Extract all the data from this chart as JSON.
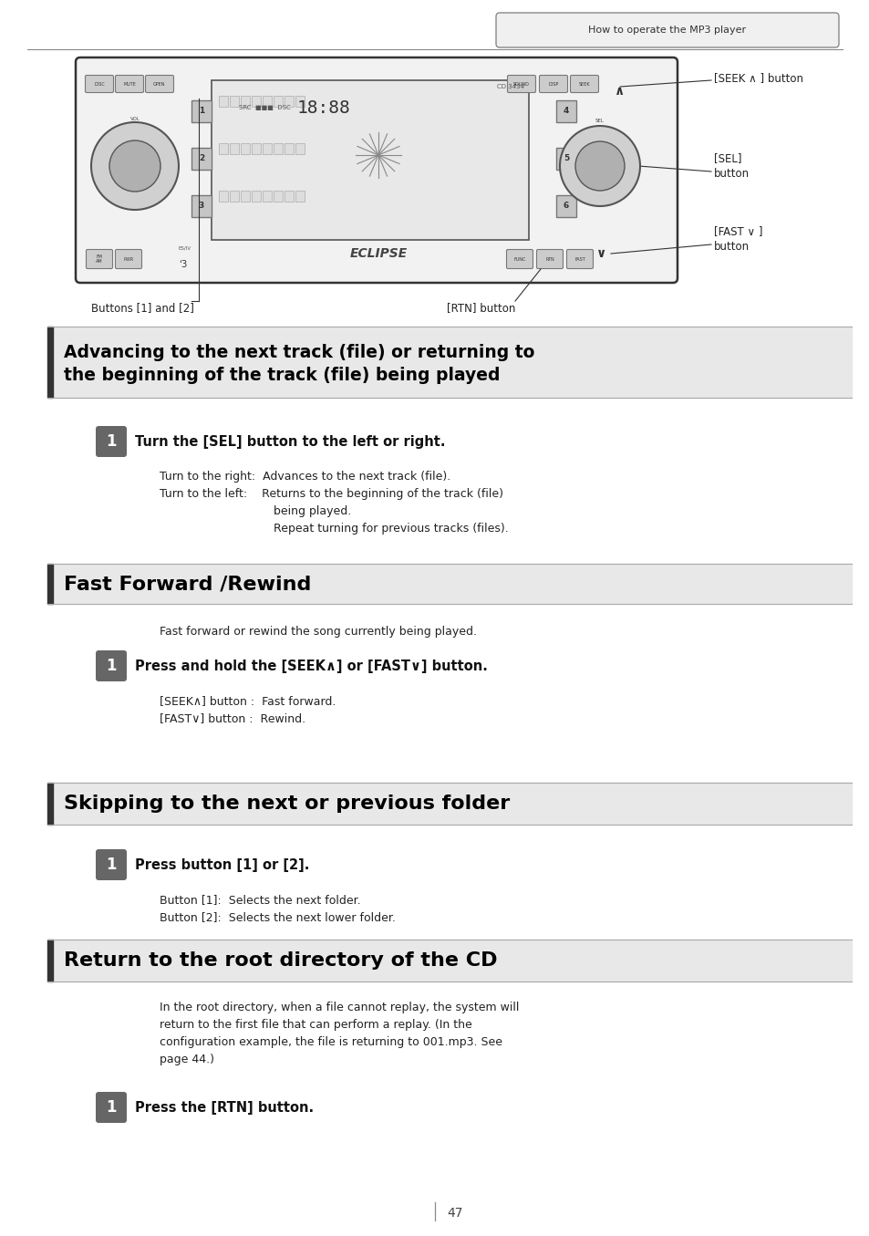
{
  "page_bg": "#ffffff",
  "header_tab_text": "How to operate the MP3 player",
  "header_tab_bg": "#f0f0f0",
  "header_tab_border": "#888888",
  "top_line_color": "#555555",
  "seek_label": "[SEEK ∧ ] button",
  "sel_label": "[SEL]\nbutton",
  "fast_label": "[FAST ∨ ]\nbutton",
  "buttons12_label": "Buttons [1] and [2]",
  "rtn_label": "[RTN] button",
  "section1_title": "Advancing to the next track (file) or returning to\nthe beginning of the track (file) being played",
  "section1_step1_bold": "Turn the [SEL] button to the left or right.",
  "section1_detail1": "Turn to the right:  Advances to the next track (file).",
  "section1_detail2a": "Turn to the left:    Returns to the beginning of the track (file)",
  "section1_detail2b": "being played.",
  "section1_detail2c": "Repeat turning for previous tracks (files).",
  "section2_title": "Fast Forward /Rewind",
  "section2_intro": "Fast forward or rewind the song currently being played.",
  "section2_step1_bold": "Press and hold the [SEEK∧] or [FAST∨] button.",
  "section2_detail1": "[SEEK∧] button :  Fast forward.",
  "section2_detail2": "[FAST∨] button :  Rewind.",
  "section3_title": "Skipping to the next or previous folder",
  "section3_step1_bold": "Press button [1] or [2].",
  "section3_detail1": "Button [1]:  Selects the next folder.",
  "section3_detail2": "Button [2]:  Selects the next lower folder.",
  "section4_title": "Return to the root directory of the CD",
  "section4_intro1": "In the root directory, when a file cannot replay, the system will",
  "section4_intro2": "return to the first file that can perform a replay. (In the",
  "section4_intro3": "configuration example, the file is returning to 001.mp3. See",
  "section4_intro4": "page 44.)",
  "section4_step1_bold": "Press the [RTN] button.",
  "page_number": "47",
  "section_title_color": "#000000",
  "body_text_color": "#222222",
  "step_badge_color": "#666666",
  "step_badge_text_color": "#ffffff",
  "section_bar_color": "#333333",
  "section_title_bg": "#e8e8e8",
  "divider_color": "#aaaaaa"
}
